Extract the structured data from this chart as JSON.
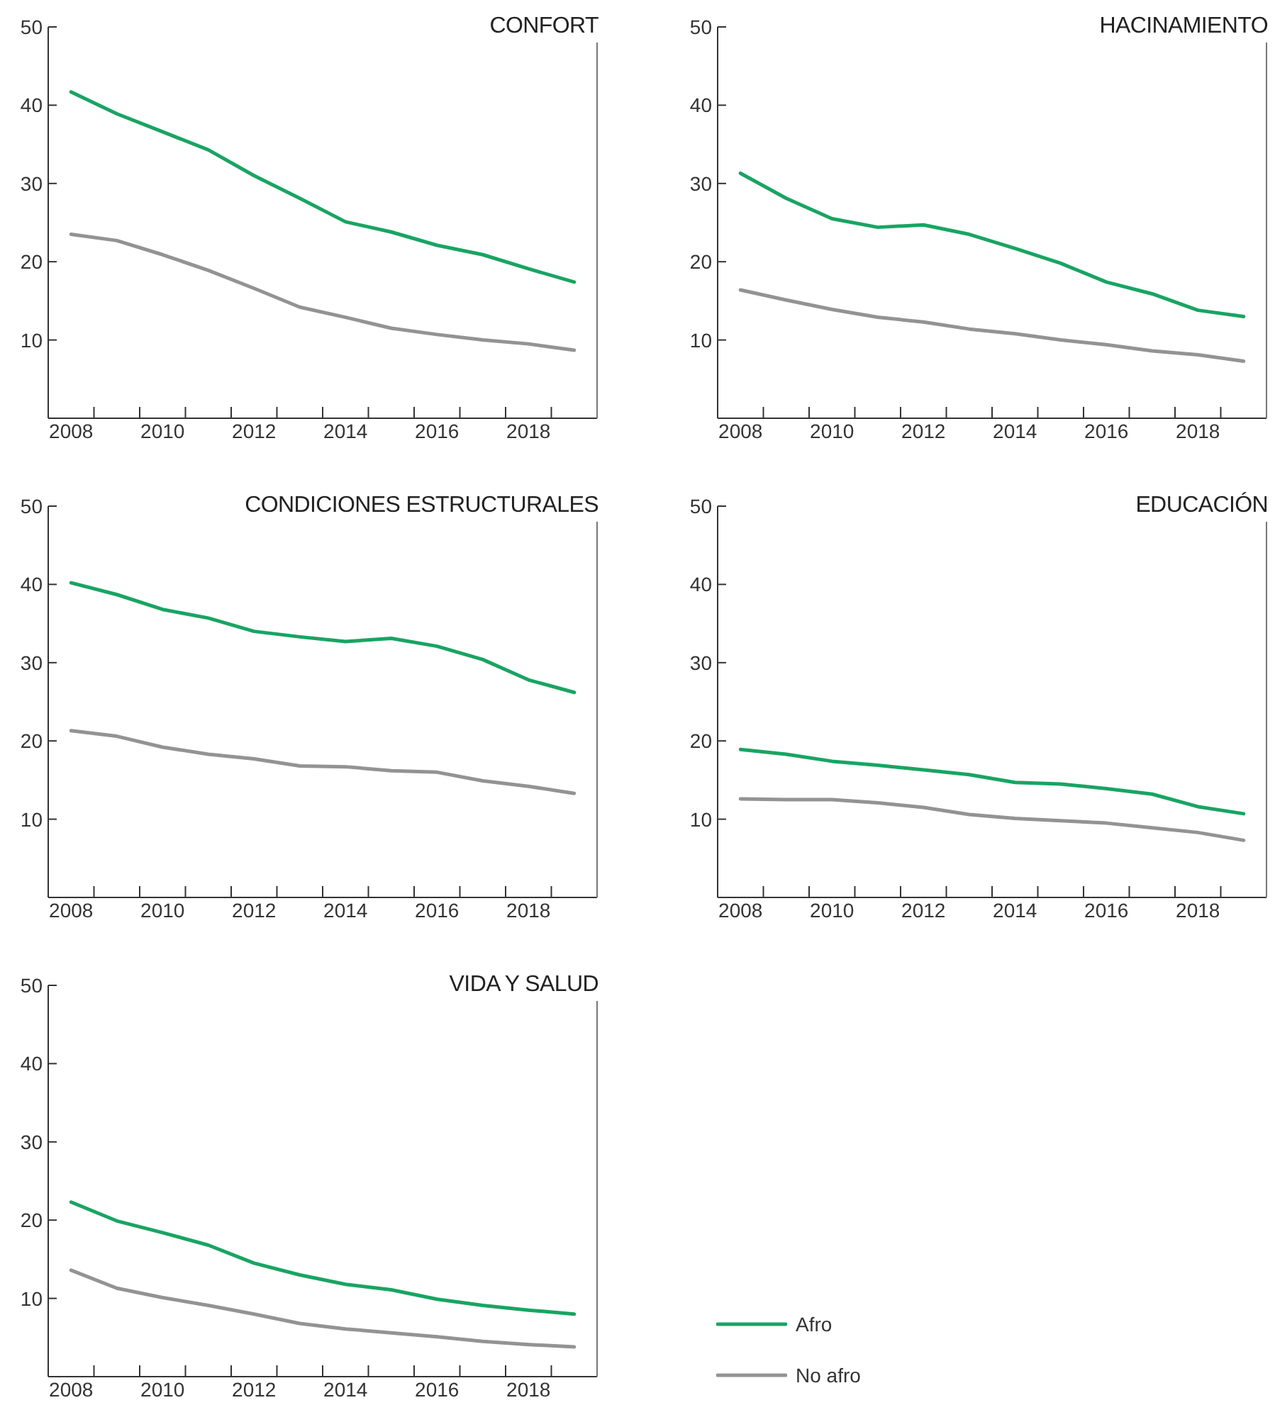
{
  "chart_data": [
    {
      "type": "line",
      "title": "CONFORT",
      "legend": "bottom right",
      "x": [
        2008,
        2009,
        2010,
        2011,
        2012,
        2013,
        2014,
        2015,
        2016,
        2017,
        2018,
        2019
      ],
      "xlim": [
        2007.5,
        2019.5
      ],
      "xticks": [
        2008,
        {
          "value": 2008.5,
          "label": null
        },
        {
          "value": 2009.5,
          "label": null
        },
        2010,
        {
          "value": 2010.5,
          "label": null
        },
        {
          "value": 2011.5,
          "label": null
        },
        2012,
        {
          "value": 2012.5,
          "label": null
        },
        {
          "value": 2013.5,
          "label": null
        },
        2014,
        {
          "value": 2014.5,
          "label": null
        },
        {
          "value": 2015.5,
          "label": null
        },
        2016,
        {
          "value": 2016.5,
          "label": null
        },
        {
          "value": 2017.5,
          "label": null
        },
        2018,
        {
          "value": 2018.5,
          "label": null
        }
      ],
      "ylim": [
        0,
        50
      ],
      "yticks": [
        10,
        20,
        30,
        40,
        50
      ],
      "series": [
        {
          "name": "Afro",
          "color": "#19a463",
          "values": [
            41.7,
            38.9,
            36.6,
            34.3,
            31.0,
            28.1,
            25.1,
            23.8,
            22.1,
            20.9,
            19.1,
            17.4
          ]
        },
        {
          "name": "No afro",
          "color": "#939393",
          "values": [
            23.5,
            22.7,
            20.9,
            18.9,
            16.6,
            14.2,
            12.9,
            11.5,
            10.7,
            10.0,
            9.5,
            8.7
          ]
        }
      ]
    },
    {
      "type": "line",
      "title": "HACINAMIENTO",
      "x": [
        2008,
        2009,
        2010,
        2011,
        2012,
        2013,
        2014,
        2015,
        2016,
        2017,
        2018,
        2019
      ],
      "xlim": [
        2007.5,
        2019.5
      ],
      "xticks": [
        2008,
        {
          "value": 2008.5,
          "label": null
        },
        {
          "value": 2009.5,
          "label": null
        },
        2010,
        {
          "value": 2010.5,
          "label": null
        },
        {
          "value": 2011.5,
          "label": null
        },
        2012,
        {
          "value": 2012.5,
          "label": null
        },
        {
          "value": 2013.5,
          "label": null
        },
        2014,
        {
          "value": 2014.5,
          "label": null
        },
        {
          "value": 2015.5,
          "label": null
        },
        2016,
        {
          "value": 2016.5,
          "label": null
        },
        {
          "value": 2017.5,
          "label": null
        },
        2018,
        {
          "value": 2018.5,
          "label": null
        }
      ],
      "ylim": [
        0,
        50
      ],
      "yticks": [
        10,
        20,
        30,
        40,
        50
      ],
      "series": [
        {
          "name": "Afro",
          "color": "#19a463",
          "values": [
            31.3,
            28.1,
            25.5,
            24.4,
            24.7,
            23.5,
            21.7,
            19.8,
            17.4,
            15.9,
            13.8,
            13.0
          ]
        },
        {
          "name": "No afro",
          "color": "#939393",
          "values": [
            16.4,
            15.1,
            13.9,
            12.9,
            12.3,
            11.4,
            10.8,
            10.0,
            9.4,
            8.6,
            8.1,
            7.3
          ]
        }
      ]
    },
    {
      "type": "line",
      "title": "CONDICIONES ESTRUCTURALES",
      "x": [
        2008,
        2009,
        2010,
        2011,
        2012,
        2013,
        2014,
        2015,
        2016,
        2017,
        2018,
        2019
      ],
      "xlim": [
        2007.5,
        2019.5
      ],
      "xticks": [
        2008,
        {
          "value": 2008.5,
          "label": null
        },
        {
          "value": 2009.5,
          "label": null
        },
        2010,
        {
          "value": 2010.5,
          "label": null
        },
        {
          "value": 2011.5,
          "label": null
        },
        2012,
        {
          "value": 2012.5,
          "label": null
        },
        {
          "value": 2013.5,
          "label": null
        },
        2014,
        {
          "value": 2014.5,
          "label": null
        },
        {
          "value": 2015.5,
          "label": null
        },
        2016,
        {
          "value": 2016.5,
          "label": null
        },
        {
          "value": 2017.5,
          "label": null
        },
        2018,
        {
          "value": 2018.5,
          "label": null
        }
      ],
      "ylim": [
        0,
        50
      ],
      "yticks": [
        10,
        20,
        30,
        40,
        50
      ],
      "series": [
        {
          "name": "Afro",
          "color": "#19a463",
          "values": [
            40.2,
            38.7,
            36.8,
            35.7,
            34.0,
            33.3,
            32.7,
            33.1,
            32.1,
            30.4,
            27.8,
            26.2
          ]
        },
        {
          "name": "No afro",
          "color": "#939393",
          "values": [
            21.3,
            20.6,
            19.2,
            18.3,
            17.7,
            16.8,
            16.7,
            16.2,
            16.0,
            14.9,
            14.2,
            13.3
          ]
        }
      ]
    },
    {
      "type": "line",
      "title": "EDUCACIÓN",
      "x": [
        2008,
        2009,
        2010,
        2011,
        2012,
        2013,
        2014,
        2015,
        2016,
        2017,
        2018,
        2019
      ],
      "xlim": [
        2007.5,
        2019.5
      ],
      "xticks": [
        2008,
        {
          "value": 2008.5,
          "label": null
        },
        {
          "value": 2009.5,
          "label": null
        },
        2010,
        {
          "value": 2010.5,
          "label": null
        },
        {
          "value": 2011.5,
          "label": null
        },
        2012,
        {
          "value": 2012.5,
          "label": null
        },
        {
          "value": 2013.5,
          "label": null
        },
        2014,
        {
          "value": 2014.5,
          "label": null
        },
        {
          "value": 2015.5,
          "label": null
        },
        2016,
        {
          "value": 2016.5,
          "label": null
        },
        {
          "value": 2017.5,
          "label": null
        },
        2018,
        {
          "value": 2018.5,
          "label": null
        }
      ],
      "ylim": [
        0,
        50
      ],
      "yticks": [
        10,
        20,
        30,
        40,
        50
      ],
      "series": [
        {
          "name": "Afro",
          "color": "#19a463",
          "values": [
            18.9,
            18.3,
            17.4,
            16.9,
            16.3,
            15.7,
            14.7,
            14.5,
            13.9,
            13.2,
            11.6,
            10.7
          ]
        },
        {
          "name": "No afro",
          "color": "#939393",
          "values": [
            12.6,
            12.5,
            12.5,
            12.1,
            11.5,
            10.6,
            10.1,
            9.8,
            9.5,
            8.9,
            8.3,
            7.3
          ]
        }
      ]
    },
    {
      "type": "line",
      "title": "VIDA Y SALUD",
      "x": [
        2008,
        2009,
        2010,
        2011,
        2012,
        2013,
        2014,
        2015,
        2016,
        2017,
        2018,
        2019
      ],
      "xlim": [
        2007.5,
        2019.5
      ],
      "xticks": [
        2008,
        {
          "value": 2008.5,
          "label": null
        },
        {
          "value": 2009.5,
          "label": null
        },
        2010,
        {
          "value": 2010.5,
          "label": null
        },
        {
          "value": 2011.5,
          "label": null
        },
        2012,
        {
          "value": 2012.5,
          "label": null
        },
        {
          "value": 2013.5,
          "label": null
        },
        2014,
        {
          "value": 2014.5,
          "label": null
        },
        {
          "value": 2015.5,
          "label": null
        },
        2016,
        {
          "value": 2016.5,
          "label": null
        },
        {
          "value": 2017.5,
          "label": null
        },
        2018,
        {
          "value": 2018.5,
          "label": null
        }
      ],
      "ylim": [
        0,
        50
      ],
      "yticks": [
        10,
        20,
        30,
        40,
        50
      ],
      "series": [
        {
          "name": "Afro",
          "color": "#19a463",
          "values": [
            22.3,
            19.9,
            18.4,
            16.8,
            14.5,
            13.0,
            11.8,
            11.1,
            9.9,
            9.1,
            8.5,
            8.0
          ]
        },
        {
          "name": "No afro",
          "color": "#939393",
          "values": [
            13.6,
            11.3,
            10.1,
            9.1,
            8.0,
            6.8,
            6.1,
            5.6,
            5.1,
            4.5,
            4.1,
            3.8
          ]
        }
      ]
    }
  ]
}
